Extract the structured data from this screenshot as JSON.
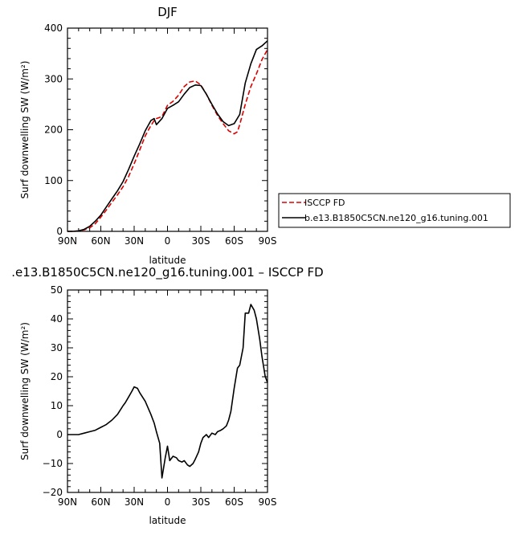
{
  "chart_data": [
    {
      "type": "line",
      "title": "DJF",
      "xlabel": "latitude",
      "ylabel": "Surf downwelling SW (W/m²)",
      "xlim": [
        -90,
        90
      ],
      "ylim": [
        0,
        400
      ],
      "xticks": [
        -90,
        -60,
        -30,
        0,
        30,
        60,
        90
      ],
      "xtick_labels": [
        "90N",
        "60N",
        "30N",
        "0",
        "30S",
        "60S",
        "90S"
      ],
      "yticks": [
        0,
        100,
        200,
        300,
        400
      ],
      "ytick_labels": [
        "0",
        "100",
        "200",
        "300",
        "400"
      ],
      "legend_position": "right",
      "series": [
        {
          "name": "ISCCP FD",
          "color": "#dd0000",
          "dashed": true,
          "x": [
            -90,
            -85,
            -80,
            -75,
            -70,
            -65,
            -60,
            -55,
            -50,
            -45,
            -40,
            -35,
            -30,
            -25,
            -20,
            -15,
            -12,
            -10,
            -5,
            0,
            5,
            10,
            15,
            20,
            25,
            30,
            35,
            40,
            45,
            50,
            55,
            60,
            63,
            65,
            70,
            75,
            80,
            85,
            90
          ],
          "y": [
            0,
            0,
            1,
            3,
            7,
            15,
            28,
            42,
            57,
            72,
            88,
            108,
            133,
            160,
            188,
            208,
            218,
            222,
            226,
            248,
            256,
            268,
            285,
            294,
            296,
            288,
            270,
            248,
            228,
            212,
            198,
            192,
            196,
            210,
            250,
            285,
            310,
            338,
            358
          ]
        },
        {
          "name": "b.e13.B1850C5CN.ne120_g16.tuning.001",
          "color": "#000000",
          "dashed": false,
          "x": [
            -90,
            -85,
            -80,
            -75,
            -70,
            -65,
            -60,
            -55,
            -50,
            -45,
            -40,
            -35,
            -30,
            -25,
            -20,
            -15,
            -12,
            -10,
            -5,
            0,
            5,
            10,
            15,
            20,
            25,
            30,
            35,
            40,
            45,
            50,
            55,
            60,
            65,
            70,
            75,
            80,
            85,
            90
          ],
          "y": [
            0,
            0,
            1,
            4,
            10,
            20,
            32,
            48,
            64,
            80,
            98,
            122,
            148,
            172,
            198,
            218,
            222,
            210,
            222,
            242,
            248,
            255,
            270,
            283,
            288,
            287,
            270,
            250,
            231,
            216,
            208,
            212,
            230,
            292,
            330,
            358,
            365,
            375
          ]
        }
      ]
    },
    {
      "type": "line",
      "title": ".e13.B1850C5CN.ne120_g16.tuning.001 – ISCCP FD",
      "xlabel": "latitude",
      "ylabel": "Surf downwelling SW (W/m²)",
      "xlim": [
        -90,
        90
      ],
      "ylim": [
        -20,
        50
      ],
      "xticks": [
        -90,
        -60,
        -30,
        0,
        30,
        60,
        90
      ],
      "xtick_labels": [
        "90N",
        "60N",
        "30N",
        "0",
        "30S",
        "60S",
        "90S"
      ],
      "yticks": [
        -20,
        -10,
        0,
        10,
        20,
        30,
        40,
        50
      ],
      "ytick_labels": [
        "−20",
        "−10",
        "0",
        "10",
        "20",
        "30",
        "40",
        "50"
      ],
      "series": [
        {
          "color": "#000000",
          "dashed": false,
          "x": [
            -90,
            -85,
            -80,
            -75,
            -70,
            -65,
            -60,
            -55,
            -50,
            -45,
            -40,
            -38,
            -35,
            -32,
            -30,
            -27,
            -25,
            -20,
            -15,
            -12,
            -10,
            -7,
            -5,
            -2,
            0,
            2,
            5,
            8,
            10,
            13,
            15,
            18,
            20,
            23,
            25,
            28,
            30,
            32,
            35,
            37,
            40,
            43,
            45,
            48,
            50,
            53,
            55,
            57,
            60,
            63,
            65,
            68,
            70,
            73,
            75,
            78,
            80,
            83,
            85,
            88,
            90
          ],
          "y": [
            0,
            0,
            0,
            0.5,
            1,
            1.5,
            2.5,
            3.5,
            5,
            7,
            10,
            11,
            13,
            15,
            16.5,
            16,
            14.5,
            11.5,
            7,
            4,
            1,
            -3,
            -15,
            -8,
            -4,
            -9,
            -7.5,
            -8,
            -9,
            -9.5,
            -9,
            -10.5,
            -11,
            -10,
            -8.5,
            -6,
            -3,
            -1,
            0,
            -1,
            0.5,
            0,
            1,
            1.5,
            2,
            3,
            5,
            8,
            16,
            23,
            24,
            30,
            42,
            42,
            45,
            43,
            40,
            33,
            27,
            20,
            18
          ]
        }
      ]
    }
  ]
}
